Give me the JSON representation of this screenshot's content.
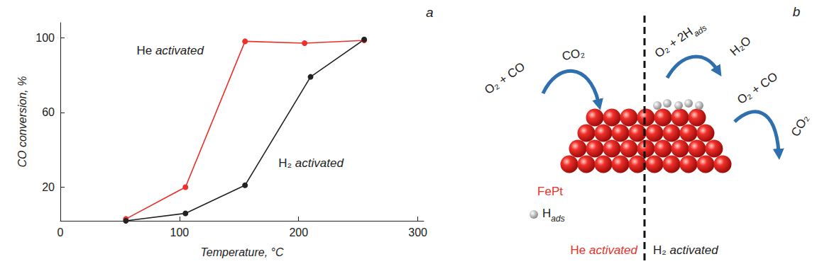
{
  "chart_data": {
    "type": "line",
    "panel_label": "a",
    "xlabel": "Temperature, °C",
    "ylabel": "CO conversion, %",
    "xlim": [
      0,
      305
    ],
    "xticks": [
      0,
      100,
      200,
      300
    ],
    "ylim": [
      2,
      108
    ],
    "yticks": [
      20,
      60,
      100
    ],
    "grid": false,
    "marker": "circle",
    "series": [
      {
        "name": "He activated",
        "color": "#e8322b",
        "x": [
          55,
          105,
          155,
          205,
          255
        ],
        "values": [
          3,
          20,
          98,
          97,
          98.5
        ]
      },
      {
        "name": "H₂ activated",
        "color": "#222222",
        "x": [
          55,
          105,
          155,
          210,
          255
        ],
        "values": [
          2,
          6,
          21,
          79,
          99
        ]
      }
    ]
  },
  "diagram": {
    "panel_label": "b",
    "material": "FePt",
    "adsorbate": {
      "main": "H",
      "sub": "ads"
    },
    "left": {
      "title": "He activated",
      "reactions": [
        {
          "reactants": {
            "main": "O₂ + CO"
          },
          "product": "CO₂"
        }
      ]
    },
    "right": {
      "title": "H₂ activated",
      "reactions": [
        {
          "reactants": {
            "main": "O₂ + 2H",
            "sub": "ads"
          },
          "product": "H₂O"
        },
        {
          "reactants": {
            "main": "O₂ + CO"
          },
          "product": "CO₂"
        }
      ]
    }
  }
}
